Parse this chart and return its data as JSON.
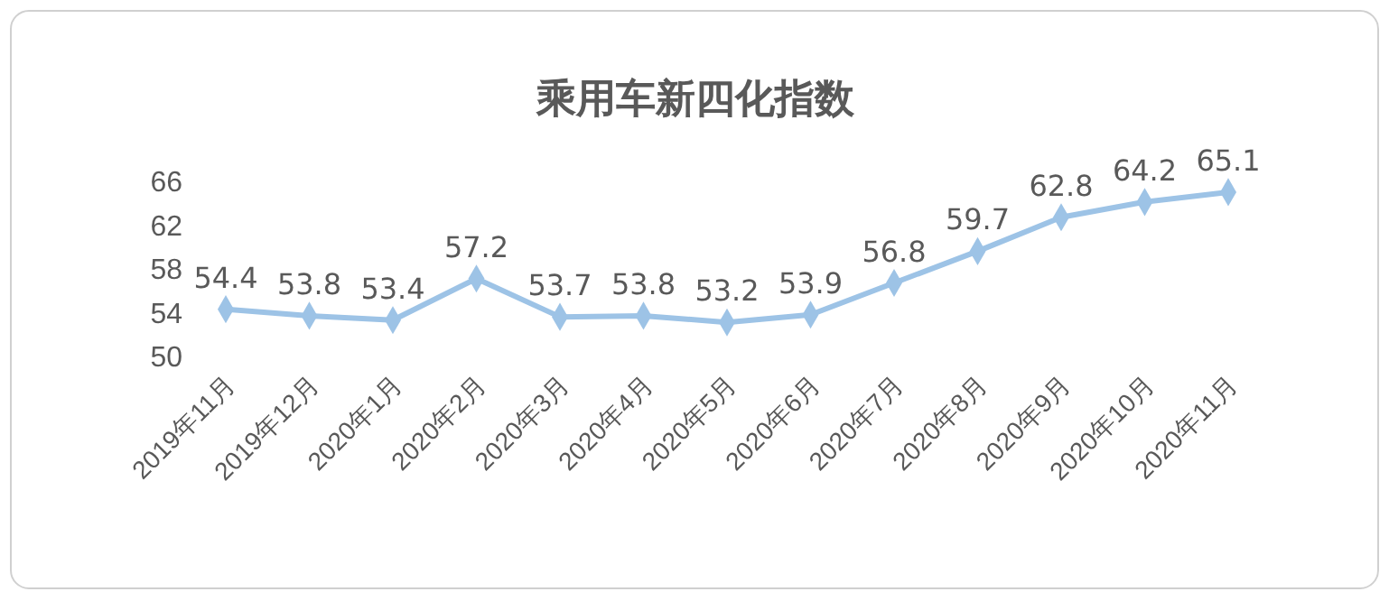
{
  "chart_data": {
    "type": "line",
    "title": "乘用车新四化指数",
    "categories": [
      "2019年11月",
      "2019年12月",
      "2020年1月",
      "2020年2月",
      "2020年3月",
      "2020年4月",
      "2020年5月",
      "2020年6月",
      "2020年7月",
      "2020年8月",
      "2020年9月",
      "2020年10月",
      "2020年11月"
    ],
    "series": [
      {
        "color": "#9dc3e6",
        "values": [
          54.4,
          53.8,
          53.4,
          57.2,
          53.7,
          53.8,
          53.2,
          53.9,
          56.8,
          59.7,
          62.8,
          64.2,
          65.1
        ]
      }
    ],
    "ylim": [
      50,
      66
    ],
    "yticks": [
      50,
      54,
      58,
      62,
      66
    ],
    "data_labels": true,
    "marker": "diamond",
    "line_style": "solid"
  }
}
